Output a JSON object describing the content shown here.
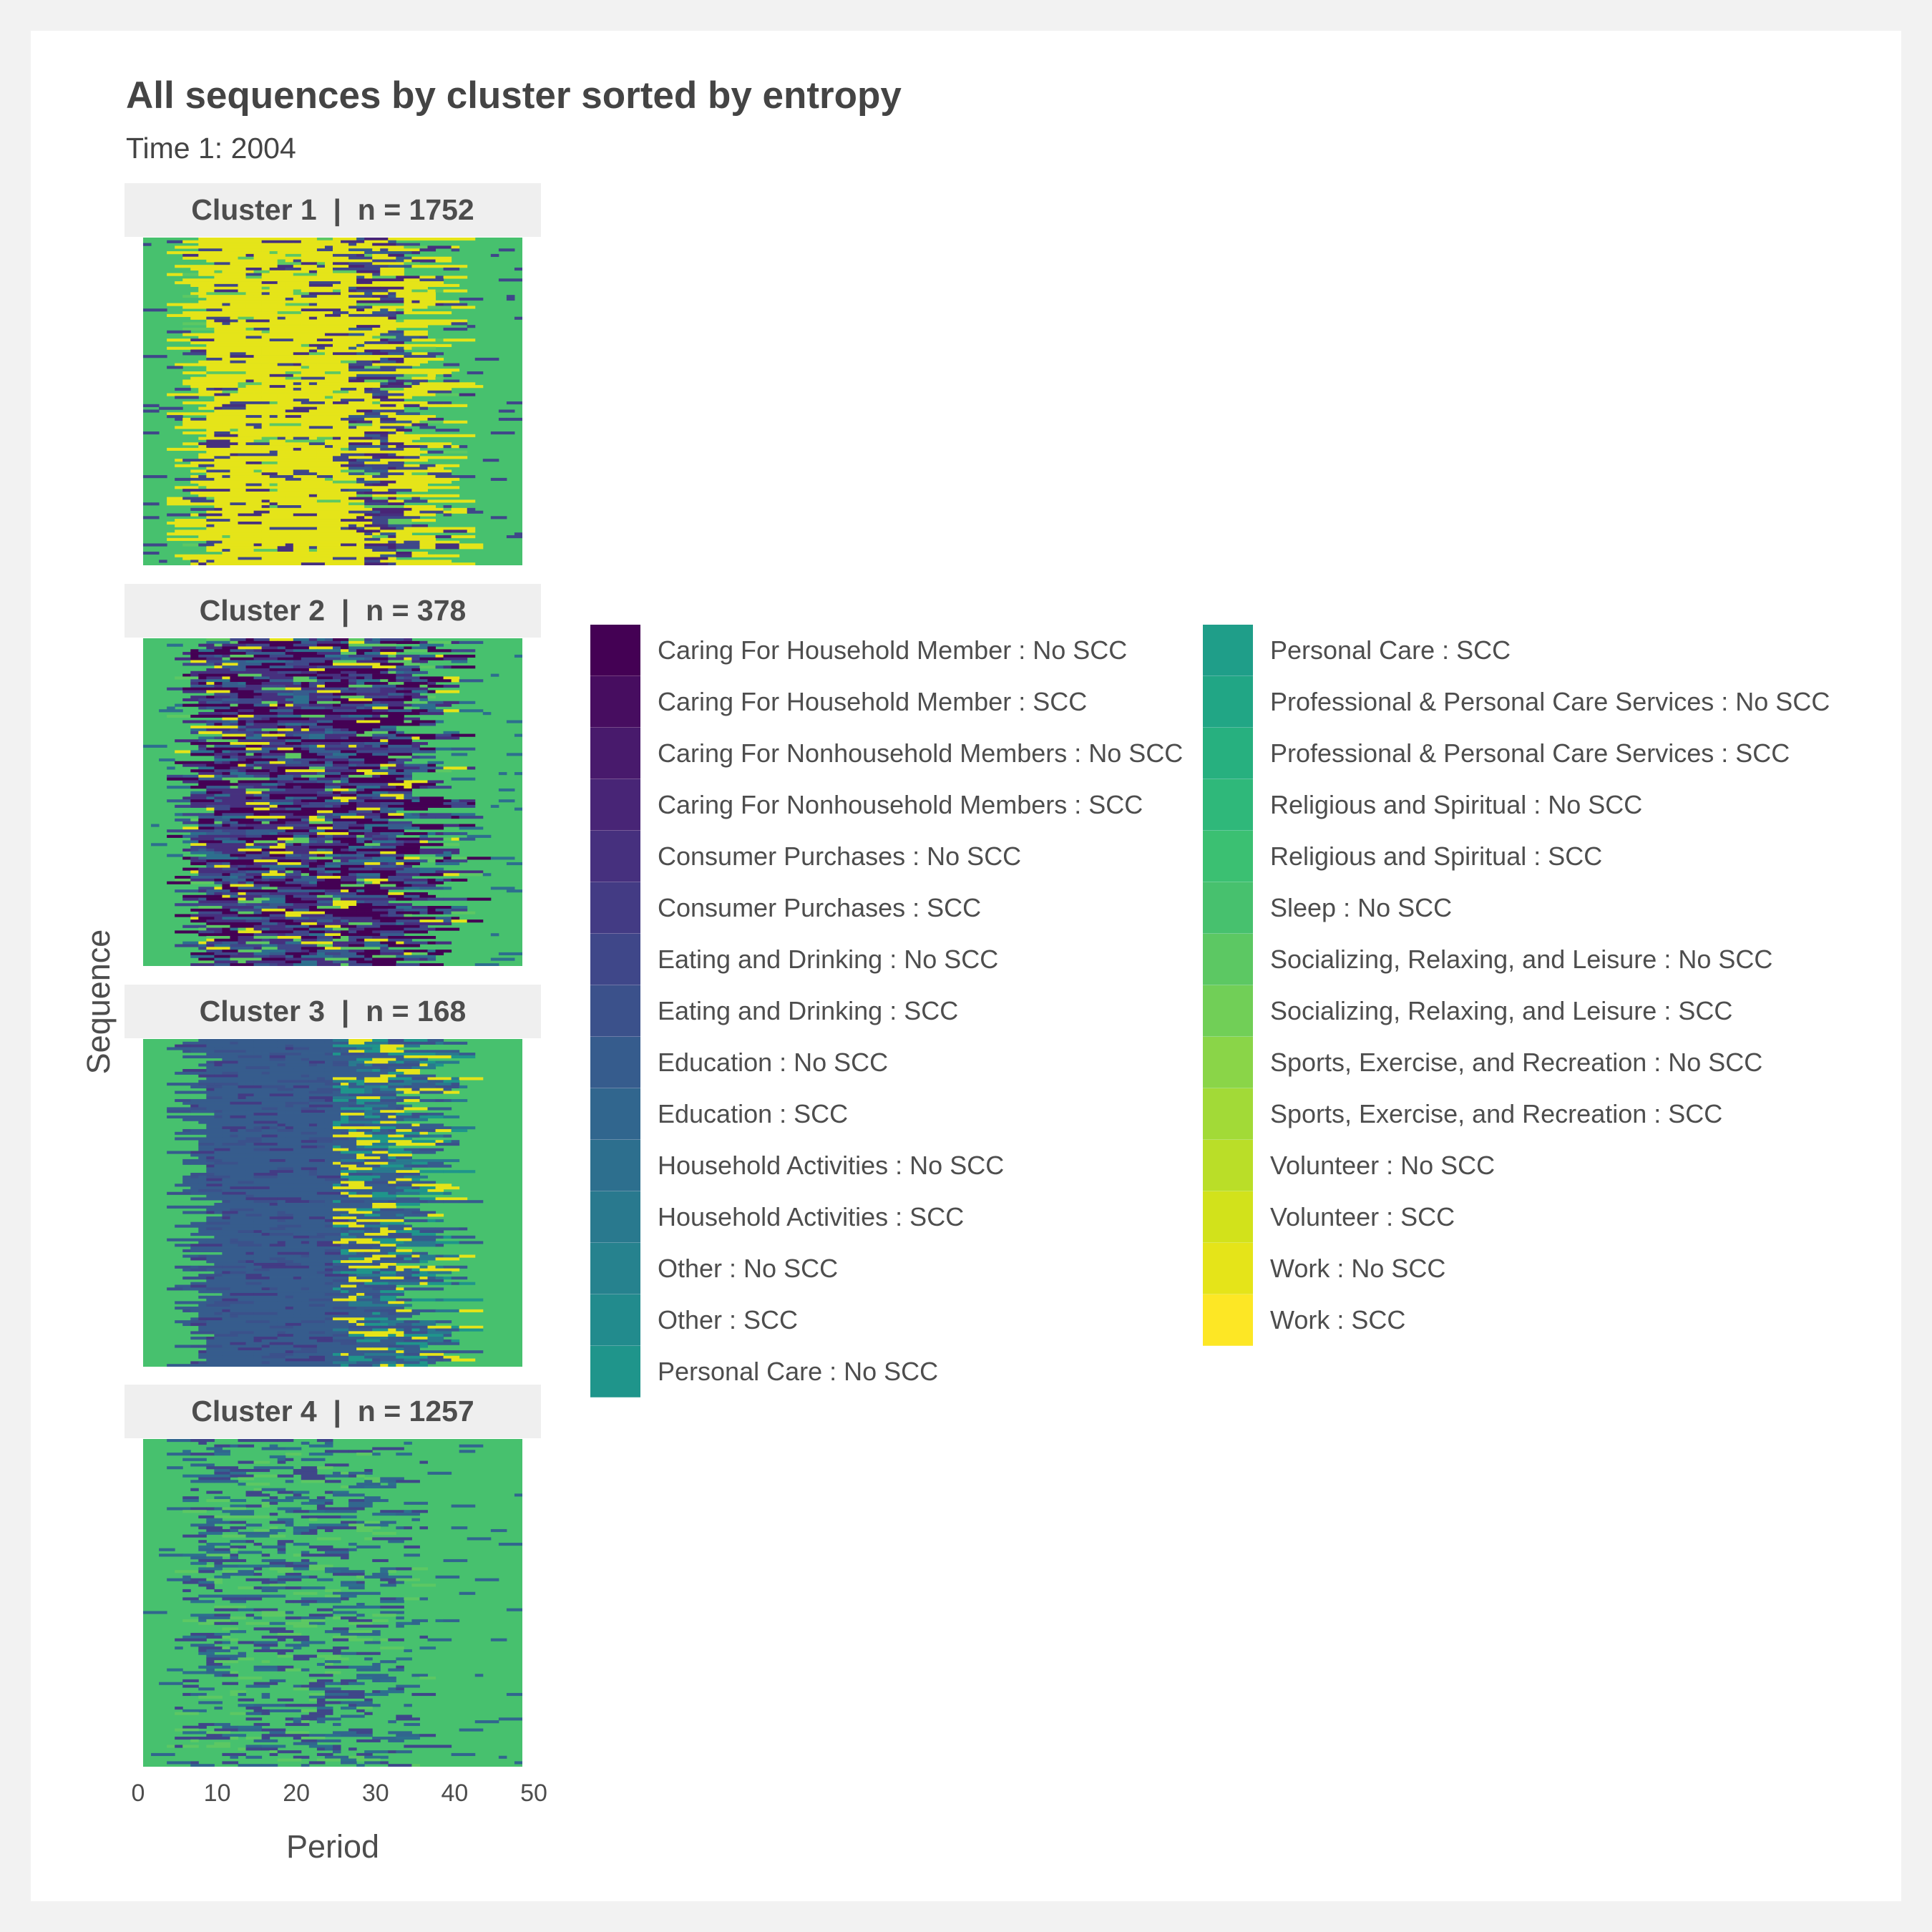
{
  "header": {
    "title": "All sequences by cluster sorted by entropy",
    "subtitle": "Time 1: 2004"
  },
  "chart_data": {
    "type": "heatmap",
    "title": "All sequences by cluster sorted by entropy",
    "subtitle": "Time 1: 2004",
    "xlabel": "Period",
    "ylabel": "Sequence",
    "xlim": [
      0,
      50
    ],
    "x_ticks": [
      "0",
      "10",
      "20",
      "30",
      "40",
      "50"
    ],
    "legend_position": "right",
    "panels": [
      {
        "label": "Cluster 1  |  n = 1752",
        "cluster": 1,
        "n": 1752,
        "dominant_states": [
          "Sleep : No SCC",
          "Work : No SCC"
        ]
      },
      {
        "label": "Cluster 2  |  n = 378",
        "cluster": 2,
        "n": 378,
        "dominant_states": [
          "Sleep : No SCC",
          "Caring For Household Member : No SCC",
          "Consumer Purchases : No SCC"
        ]
      },
      {
        "label": "Cluster 3  |  n = 168",
        "cluster": 3,
        "n": 168,
        "dominant_states": [
          "Sleep : No SCC",
          "Education : No SCC",
          "Eating and Drinking : SCC"
        ]
      },
      {
        "label": "Cluster 4  |  n = 1257",
        "cluster": 4,
        "n": 1257,
        "dominant_states": [
          "Sleep : No SCC",
          "Eating and Drinking : No SCC",
          "Education : SCC"
        ]
      }
    ],
    "legend": [
      {
        "label": "Caring For Household Member : No SCC",
        "color": "#440154"
      },
      {
        "label": "Caring For Household Member : SCC",
        "color": "#470d60"
      },
      {
        "label": "Caring For Nonhousehold Members : No SCC",
        "color": "#481a6c"
      },
      {
        "label": "Caring For Nonhousehold Members : SCC",
        "color": "#482576"
      },
      {
        "label": "Consumer Purchases : No SCC",
        "color": "#46307e"
      },
      {
        "label": "Consumer Purchases : SCC",
        "color": "#433b84"
      },
      {
        "label": "Eating and Drinking : No SCC",
        "color": "#3f4789"
      },
      {
        "label": "Eating and Drinking : SCC",
        "color": "#3b518b"
      },
      {
        "label": "Education : No SCC",
        "color": "#365c8d"
      },
      {
        "label": "Education : SCC",
        "color": "#31668e"
      },
      {
        "label": "Household Activities : No SCC",
        "color": "#2d6f8e"
      },
      {
        "label": "Household Activities : SCC",
        "color": "#29798e"
      },
      {
        "label": "Other : No SCC",
        "color": "#26828e"
      },
      {
        "label": "Other : SCC",
        "color": "#228b8d"
      },
      {
        "label": "Personal Care : No SCC",
        "color": "#1f958b"
      },
      {
        "label": "Personal Care : SCC",
        "color": "#1f9e89"
      },
      {
        "label": "Professional & Personal Care Services : No SCC",
        "color": "#21a685"
      },
      {
        "label": "Professional & Personal Care Services : SCC",
        "color": "#27b07f"
      },
      {
        "label": "Religious and Spiritual : No SCC",
        "color": "#2fb87a"
      },
      {
        "label": "Religious and Spiritual : SCC",
        "color": "#3bc072"
      },
      {
        "label": "Sleep : No SCC",
        "color": "#47c16e"
      },
      {
        "label": "Socializing, Relaxing, and Leisure : No SCC",
        "color": "#5cc863"
      },
      {
        "label": "Socializing, Relaxing, and Leisure : SCC",
        "color": "#71cf57"
      },
      {
        "label": "Sports, Exercise, and Recreation : No SCC",
        "color": "#8ad548"
      },
      {
        "label": "Sports, Exercise, and Recreation : SCC",
        "color": "#a2da37"
      },
      {
        "label": "Volunteer : No SCC",
        "color": "#bade28"
      },
      {
        "label": "Volunteer : SCC",
        "color": "#d2e21b"
      },
      {
        "label": "Work : No SCC",
        "color": "#e5e419"
      },
      {
        "label": "Work : SCC",
        "color": "#fde725"
      }
    ]
  }
}
